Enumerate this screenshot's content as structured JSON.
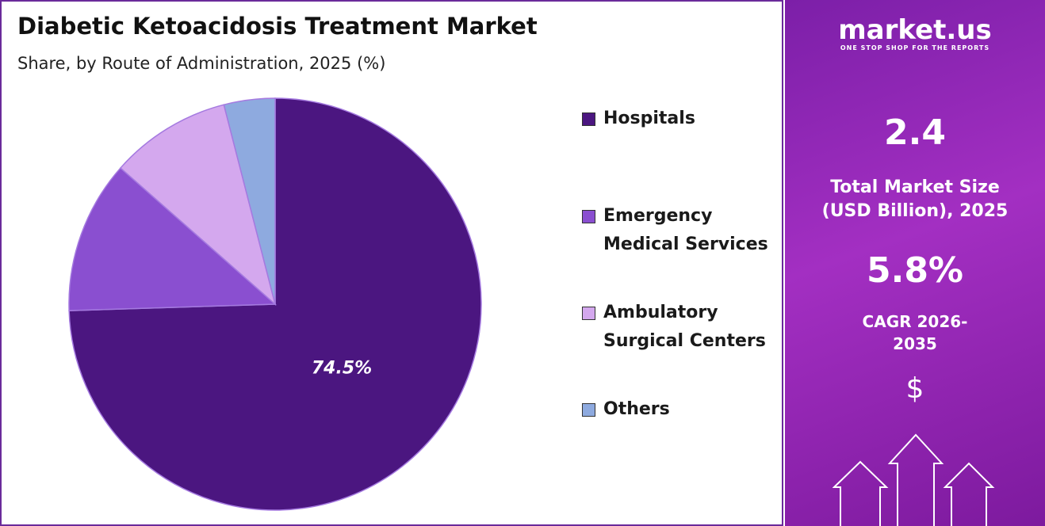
{
  "chart_data": {
    "type": "pie",
    "title": "Diabetic Ketoacidosis Treatment Market",
    "subtitle": "Share, by  Route of Administration, 2025 (%)",
    "categories": [
      "Hospitals",
      "Emergency Medical Services",
      "Ambulatory Surgical Centers",
      "Others"
    ],
    "values": [
      74.5,
      12,
      9.5,
      4
    ],
    "value_labels": [
      "74.5%",
      null,
      null,
      null
    ],
    "colors": [
      "#4b1680",
      "#8a4fd0",
      "#d4a8ee",
      "#8eaadf"
    ]
  },
  "side_panel": {
    "logo": "market.us",
    "tagline": "ONE STOP SHOP FOR THE REPORTS",
    "market_size": "2.4",
    "market_size_label": "Total Market Size (USD Billion), 2025",
    "cagr": "5.8%",
    "cagr_label": "CAGR 2026-2035",
    "currency": "$"
  }
}
